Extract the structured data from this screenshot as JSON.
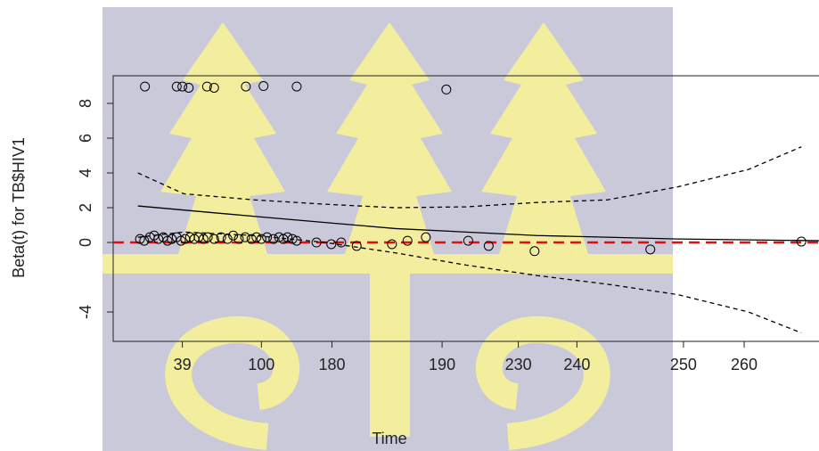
{
  "chart_data": {
    "type": "scatter",
    "xlabel": "Time",
    "ylabel": "Beta(t) for TB$HIV1",
    "xlim": [
      0,
      1
    ],
    "ylim": [
      -5.69,
      9.59
    ],
    "xticks": [
      {
        "value": 0.098,
        "label": "39"
      },
      {
        "value": 0.21,
        "label": "100"
      },
      {
        "value": 0.31,
        "label": "180"
      },
      {
        "value": 0.466,
        "label": "190"
      },
      {
        "value": 0.574,
        "label": "230"
      },
      {
        "value": 0.657,
        "label": "240"
      },
      {
        "value": 0.808,
        "label": "250"
      },
      {
        "value": 0.894,
        "label": "260"
      }
    ],
    "yticks": [
      -4,
      0,
      2,
      4,
      6,
      8
    ],
    "points": {
      "color": "#000000",
      "x": [
        0.038,
        0.044,
        0.052,
        0.058,
        0.064,
        0.071,
        0.077,
        0.083,
        0.09,
        0.096,
        0.102,
        0.109,
        0.115,
        0.121,
        0.128,
        0.134,
        0.143,
        0.153,
        0.162,
        0.17,
        0.178,
        0.187,
        0.196,
        0.203,
        0.21,
        0.218,
        0.227,
        0.235,
        0.241,
        0.247,
        0.254,
        0.26,
        0.288,
        0.309,
        0.323,
        0.345,
        0.395,
        0.417,
        0.443,
        0.503,
        0.532,
        0.597,
        0.761,
        0.975,
        0.045,
        0.09,
        0.098,
        0.107,
        0.133,
        0.143,
        0.188,
        0.213,
        0.26,
        0.472
      ],
      "values": [
        0.2,
        0.1,
        0.3,
        0.4,
        0.2,
        0.3,
        0.1,
        0.2,
        0.3,
        0.1,
        0.2,
        0.3,
        0.2,
        0.3,
        0.2,
        0.3,
        0.2,
        0.3,
        0.2,
        0.4,
        0.2,
        0.3,
        0.2,
        0.3,
        0.2,
        0.3,
        0.2,
        0.3,
        0.2,
        0.3,
        0.2,
        0.1,
        0.0,
        -0.1,
        0.0,
        -0.2,
        -0.1,
        0.1,
        0.3,
        0.1,
        -0.2,
        -0.5,
        -0.4,
        0.05,
        8.97,
        8.97,
        8.97,
        8.9,
        8.97,
        8.9,
        8.97,
        9.0,
        8.97,
        8.8
      ]
    },
    "fit": {
      "color": "#000000",
      "x": [
        0.035,
        0.2,
        0.4,
        0.6,
        0.8,
        1.0
      ],
      "values": [
        2.1,
        1.5,
        0.8,
        0.4,
        0.2,
        0.1
      ]
    },
    "upper": {
      "color": "#000000",
      "x": [
        0.035,
        0.1,
        0.2,
        0.3,
        0.4,
        0.5,
        0.6,
        0.7,
        0.8,
        0.9,
        0.975
      ],
      "values": [
        4.0,
        2.8,
        2.45,
        2.2,
        2.0,
        2.05,
        2.3,
        2.45,
        3.2,
        4.2,
        5.5
      ]
    },
    "lower": {
      "color": "#000000",
      "x": [
        0.035,
        0.1,
        0.2,
        0.3,
        0.4,
        0.5,
        0.6,
        0.7,
        0.8,
        0.9,
        0.975
      ],
      "values": [
        0.3,
        0.6,
        0.4,
        0,
        -0.6,
        -1.3,
        -1.9,
        -2.4,
        -3.0,
        -4.0,
        -5.2
      ]
    },
    "hline": {
      "value": 0,
      "color": "#e01010"
    }
  }
}
